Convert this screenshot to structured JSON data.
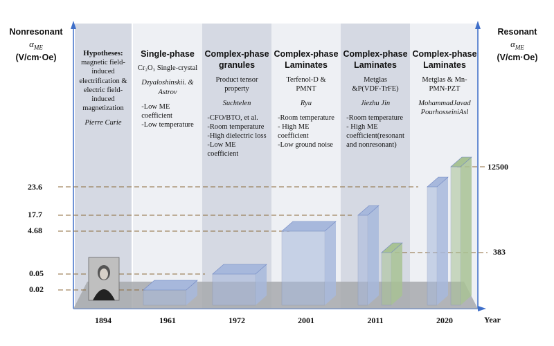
{
  "chart_data": {
    "type": "bar",
    "categories": [
      "1894",
      "1961",
      "1972",
      "2001",
      "2011",
      "2020"
    ],
    "left_axis": {
      "title_line1": "Nonresonant",
      "symbol": "αME",
      "unit": "(V/cm·Oe)",
      "ticks": [
        "23.6",
        "17.7",
        "4.68",
        "0.05",
        "0.02"
      ]
    },
    "right_axis": {
      "title_line1": "Resonant",
      "symbol": "αME",
      "unit": "(V/cm·Oe)",
      "ticks": [
        "12500",
        "383"
      ]
    },
    "xlabel": "Year",
    "series": [
      {
        "color": "#a7b8dc",
        "values": [
          null,
          0.02,
          0.05,
          4.68,
          17.7,
          23.6
        ]
      },
      {
        "color": "#a8c294",
        "values": [
          null,
          null,
          null,
          null,
          383,
          12500
        ]
      }
    ],
    "columns": [
      {
        "year": "1894",
        "heading": [
          "Hypotheses:"
        ],
        "lines": [
          "magnetic field-",
          "induced",
          "electrification &",
          "electric field-",
          "induced",
          "magnetization"
        ],
        "person": "Pierre Curie",
        "points": [],
        "photo_icon": "portrait-photo"
      },
      {
        "year": "1961",
        "heading": [
          "Single-phase"
        ],
        "lines": [
          "Cr₂O₃ Single-crystal"
        ],
        "person": "Dzyaloshinskii. & Astrov",
        "points": [
          "-Low ME",
          "coefficient",
          "-Low temperature"
        ]
      },
      {
        "year": "1972",
        "heading": [
          "Complex-phase",
          "granules"
        ],
        "lines": [
          "Product tensor",
          "property"
        ],
        "person": "Suchtelen",
        "points": [
          "-CFO/BTO, et al.",
          "-Room temperature",
          "-High dielectric loss",
          "-Low ME",
          "coefficient"
        ]
      },
      {
        "year": "2001",
        "heading": [
          "Complex-phase",
          "Laminates"
        ],
        "lines": [
          "Terfenol-D &",
          "PMNT"
        ],
        "person": "Ryu",
        "points": [
          "-Room temperature",
          "- High ME",
          "coefficient",
          "-Low ground noise"
        ]
      },
      {
        "year": "2011",
        "heading": [
          "Complex-phase",
          "Laminates"
        ],
        "lines": [
          "Metglas",
          "&P(VDF-TrFE)"
        ],
        "person": "Jiezhu Jin",
        "points": [
          "-Room temperature",
          "- High ME",
          "coefficient(resonant",
          "and nonresonant)"
        ]
      },
      {
        "year": "2020",
        "heading": [
          "Complex-phase",
          "Laminates"
        ],
        "lines": [
          "Metglas & Mn-",
          "PMN-PZT"
        ],
        "person": "MohammadJavad PourhosseiniAsl",
        "points": []
      }
    ],
    "colors": {
      "column_dark": "#d5d9e3",
      "column_light": "#eef0f4",
      "axis": "#3f6fc9",
      "guide": "#8c6a3a",
      "floor": "#a7a9ad",
      "bar_blue": "#a7b8dc",
      "bar_green": "#a8c294"
    }
  }
}
